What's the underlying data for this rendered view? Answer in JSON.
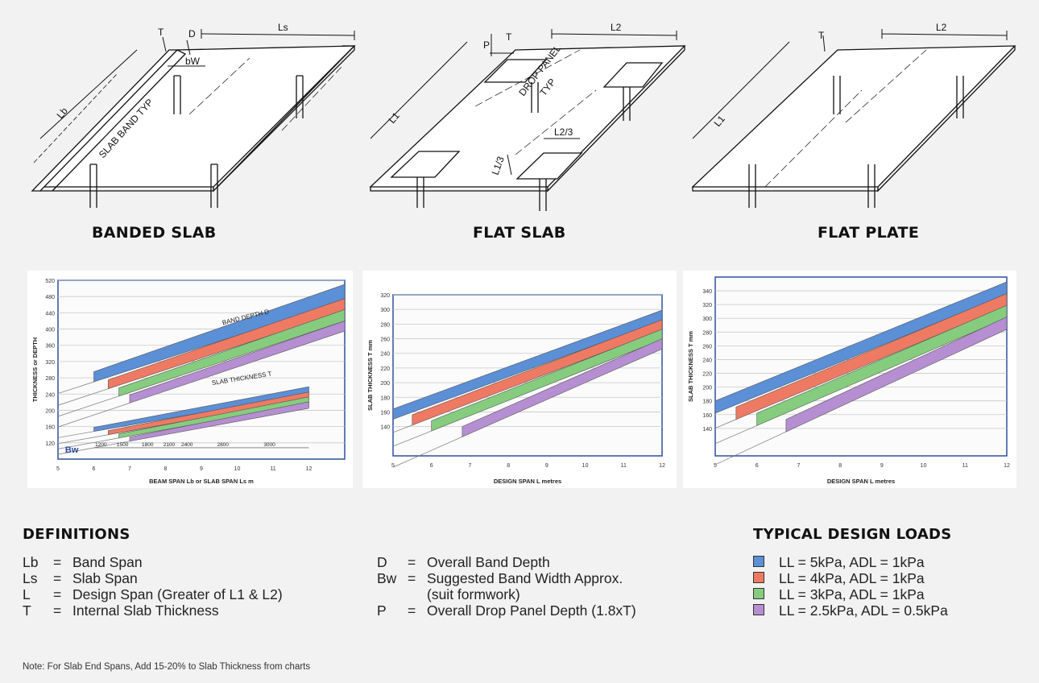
{
  "diagrams": [
    {
      "caption": "BANDED SLAB",
      "labels": {
        "t": "T",
        "d": "D",
        "ls": "Ls",
        "bw": "bW",
        "lb": "Lb",
        "band": "SLAB BAND TYP"
      }
    },
    {
      "caption": "FLAT SLAB",
      "labels": {
        "p": "P",
        "t": "T",
        "l2": "L2",
        "l1": "L1",
        "drop1": "DROP PANEL",
        "drop2": "TYP",
        "l2_3": "L2/3",
        "l1_3": "L1/3"
      }
    },
    {
      "caption": "FLAT PLATE",
      "labels": {
        "t": "T",
        "l2": "L2",
        "l1": "L1"
      }
    }
  ],
  "chart_data": [
    {
      "type": "area",
      "title": "",
      "xlabel": "BEAM SPAN Lb or SLAB SPAN Ls m",
      "ylabel": "THICKNESS or DEPTH",
      "xlim": [
        5,
        13
      ],
      "ylim": [
        80,
        520
      ],
      "x_ticks": [
        5,
        6,
        7,
        8,
        9,
        10,
        11,
        12
      ],
      "y_ticks": [
        120,
        160,
        200,
        240,
        280,
        320,
        360,
        400,
        440,
        480,
        520
      ],
      "annotations": [
        "BAND DEPTH D",
        "SLAB THICKNESS T"
      ],
      "bw_label": "Bw",
      "bw_values": [
        "1200",
        "1500",
        "1800",
        "2100",
        "2400",
        "2800",
        "3000"
      ],
      "series": [
        {
          "group": "band",
          "load": "LL = 5kPa, ADL = 1kPa",
          "x": [
            6,
            13
          ],
          "y_low": [
            270,
            470
          ],
          "y_high": [
            295,
            510
          ]
        },
        {
          "group": "band",
          "load": "LL = 4kPa, ADL = 1kPa",
          "x": [
            6.4,
            13
          ],
          "y_low": [
            253,
            445
          ],
          "y_high": [
            275,
            475
          ]
        },
        {
          "group": "band",
          "load": "LL = 3kPa, ADL = 1kPa",
          "x": [
            6.7,
            13
          ],
          "y_low": [
            235,
            420
          ],
          "y_high": [
            255,
            448
          ]
        },
        {
          "group": "band",
          "load": "LL = 2.5kPa, ADL = 0.5kPa",
          "x": [
            7,
            13
          ],
          "y_low": [
            218,
            395
          ],
          "y_high": [
            238,
            420
          ]
        },
        {
          "group": "slab",
          "load": "LL = 5kPa, ADL = 1kPa",
          "x": [
            6,
            12
          ],
          "y_low": [
            148,
            240
          ],
          "y_high": [
            158,
            258
          ]
        },
        {
          "group": "slab",
          "load": "LL = 4kPa, ADL = 1kPa",
          "x": [
            6.4,
            12
          ],
          "y_low": [
            140,
            228
          ],
          "y_high": [
            150,
            245
          ]
        },
        {
          "group": "slab",
          "load": "LL = 3kPa, ADL = 1kPa",
          "x": [
            6.7,
            12
          ],
          "y_low": [
            132,
            216
          ],
          "y_high": [
            142,
            233
          ]
        },
        {
          "group": "slab",
          "load": "LL = 2.5kPa, ADL = 0.5kPa",
          "x": [
            7,
            12
          ],
          "y_low": [
            124,
            205
          ],
          "y_high": [
            134,
            221
          ]
        }
      ]
    },
    {
      "type": "area",
      "title": "",
      "xlabel": "DESIGN SPAN L  metres",
      "ylabel": "SLAB THICKNESS T mm",
      "xlim": [
        5,
        12
      ],
      "ylim": [
        100,
        320
      ],
      "x_ticks": [
        5,
        6,
        7,
        8,
        9,
        10,
        11,
        12
      ],
      "y_ticks": [
        140,
        160,
        180,
        200,
        220,
        240,
        260,
        280,
        300,
        320
      ],
      "series": [
        {
          "load": "LL = 5kPa, ADL = 1kPa",
          "x": [
            5,
            12
          ],
          "y_low": [
            150,
            285
          ],
          "y_high": [
            164,
            299
          ]
        },
        {
          "load": "LL = 4kPa, ADL = 1kPa",
          "x": [
            5.5,
            12
          ],
          "y_low": [
            142,
            272
          ],
          "y_high": [
            156,
            286
          ]
        },
        {
          "load": "LL = 3kPa, ADL = 1kPa",
          "x": [
            6,
            12
          ],
          "y_low": [
            134,
            259
          ],
          "y_high": [
            148,
            273
          ]
        },
        {
          "load": "LL = 2.5kPa, ADL = 0.5kPa",
          "x": [
            6.8,
            12
          ],
          "y_low": [
            126,
            246
          ],
          "y_high": [
            140,
            260
          ]
        }
      ]
    },
    {
      "type": "area",
      "title": "",
      "xlabel": "DESIGN SPAN L  metres",
      "ylabel": "SLAB THICKNESS T mm",
      "xlim": [
        5,
        12
      ],
      "ylim": [
        100,
        360
      ],
      "x_ticks": [
        5,
        6,
        7,
        8,
        9,
        10,
        11,
        12
      ],
      "y_ticks": [
        140,
        160,
        180,
        200,
        220,
        240,
        260,
        280,
        300,
        320,
        340
      ],
      "series": [
        {
          "load": "LL = 5kPa, ADL = 1kPa",
          "x": [
            5,
            12
          ],
          "y_low": [
            162,
            335
          ],
          "y_high": [
            180,
            353
          ]
        },
        {
          "load": "LL = 4kPa, ADL = 1kPa",
          "x": [
            5.5,
            12
          ],
          "y_low": [
            153,
            318
          ],
          "y_high": [
            171,
            336
          ]
        },
        {
          "load": "LL = 3kPa, ADL = 1kPa",
          "x": [
            6,
            12
          ],
          "y_low": [
            144,
            301
          ],
          "y_high": [
            162,
            319
          ]
        },
        {
          "load": "LL = 2.5kPa, ADL = 0.5kPa",
          "x": [
            6.7,
            12
          ],
          "y_low": [
            135,
            284
          ],
          "y_high": [
            153,
            302
          ]
        }
      ]
    }
  ],
  "definitions": {
    "heading": "DEFINITIONS",
    "left": [
      {
        "key": "Lb",
        "eq": "=",
        "text": "Band Span"
      },
      {
        "key": "Ls",
        "eq": "=",
        "text": "Slab Span"
      },
      {
        "key": "L",
        "eq": "=",
        "text": "Design Span (Greater of L1 & L2)"
      },
      {
        "key": "T",
        "eq": "=",
        "text": "Internal Slab Thickness"
      }
    ],
    "right": [
      {
        "key": "D",
        "eq": "=",
        "text": "Overall Band Depth"
      },
      {
        "key": "Bw",
        "eq": "=",
        "text": "Suggested Band Width Approx."
      },
      {
        "key": "",
        "eq": "",
        "text": "(suit formwork)"
      },
      {
        "key": "P",
        "eq": "=",
        "text": "Overall Drop Panel Depth (1.8xT)"
      }
    ]
  },
  "loads": {
    "heading": "TYPICAL DESIGN LOADS",
    "items": [
      {
        "label": "LL = 5kPa, ADL = 1kPa",
        "color": "#5b8fd6"
      },
      {
        "label": "LL = 4kPa, ADL = 1kPa",
        "color": "#ef7a63"
      },
      {
        "label": "LL = 3kPa, ADL = 1kPa",
        "color": "#86cc7e"
      },
      {
        "label": "LL = 2.5kPa, ADL = 0.5kPa",
        "color": "#b58fd1"
      }
    ]
  },
  "note": "Note: For Slab End Spans, Add 15-20% to Slab Thickness from charts"
}
